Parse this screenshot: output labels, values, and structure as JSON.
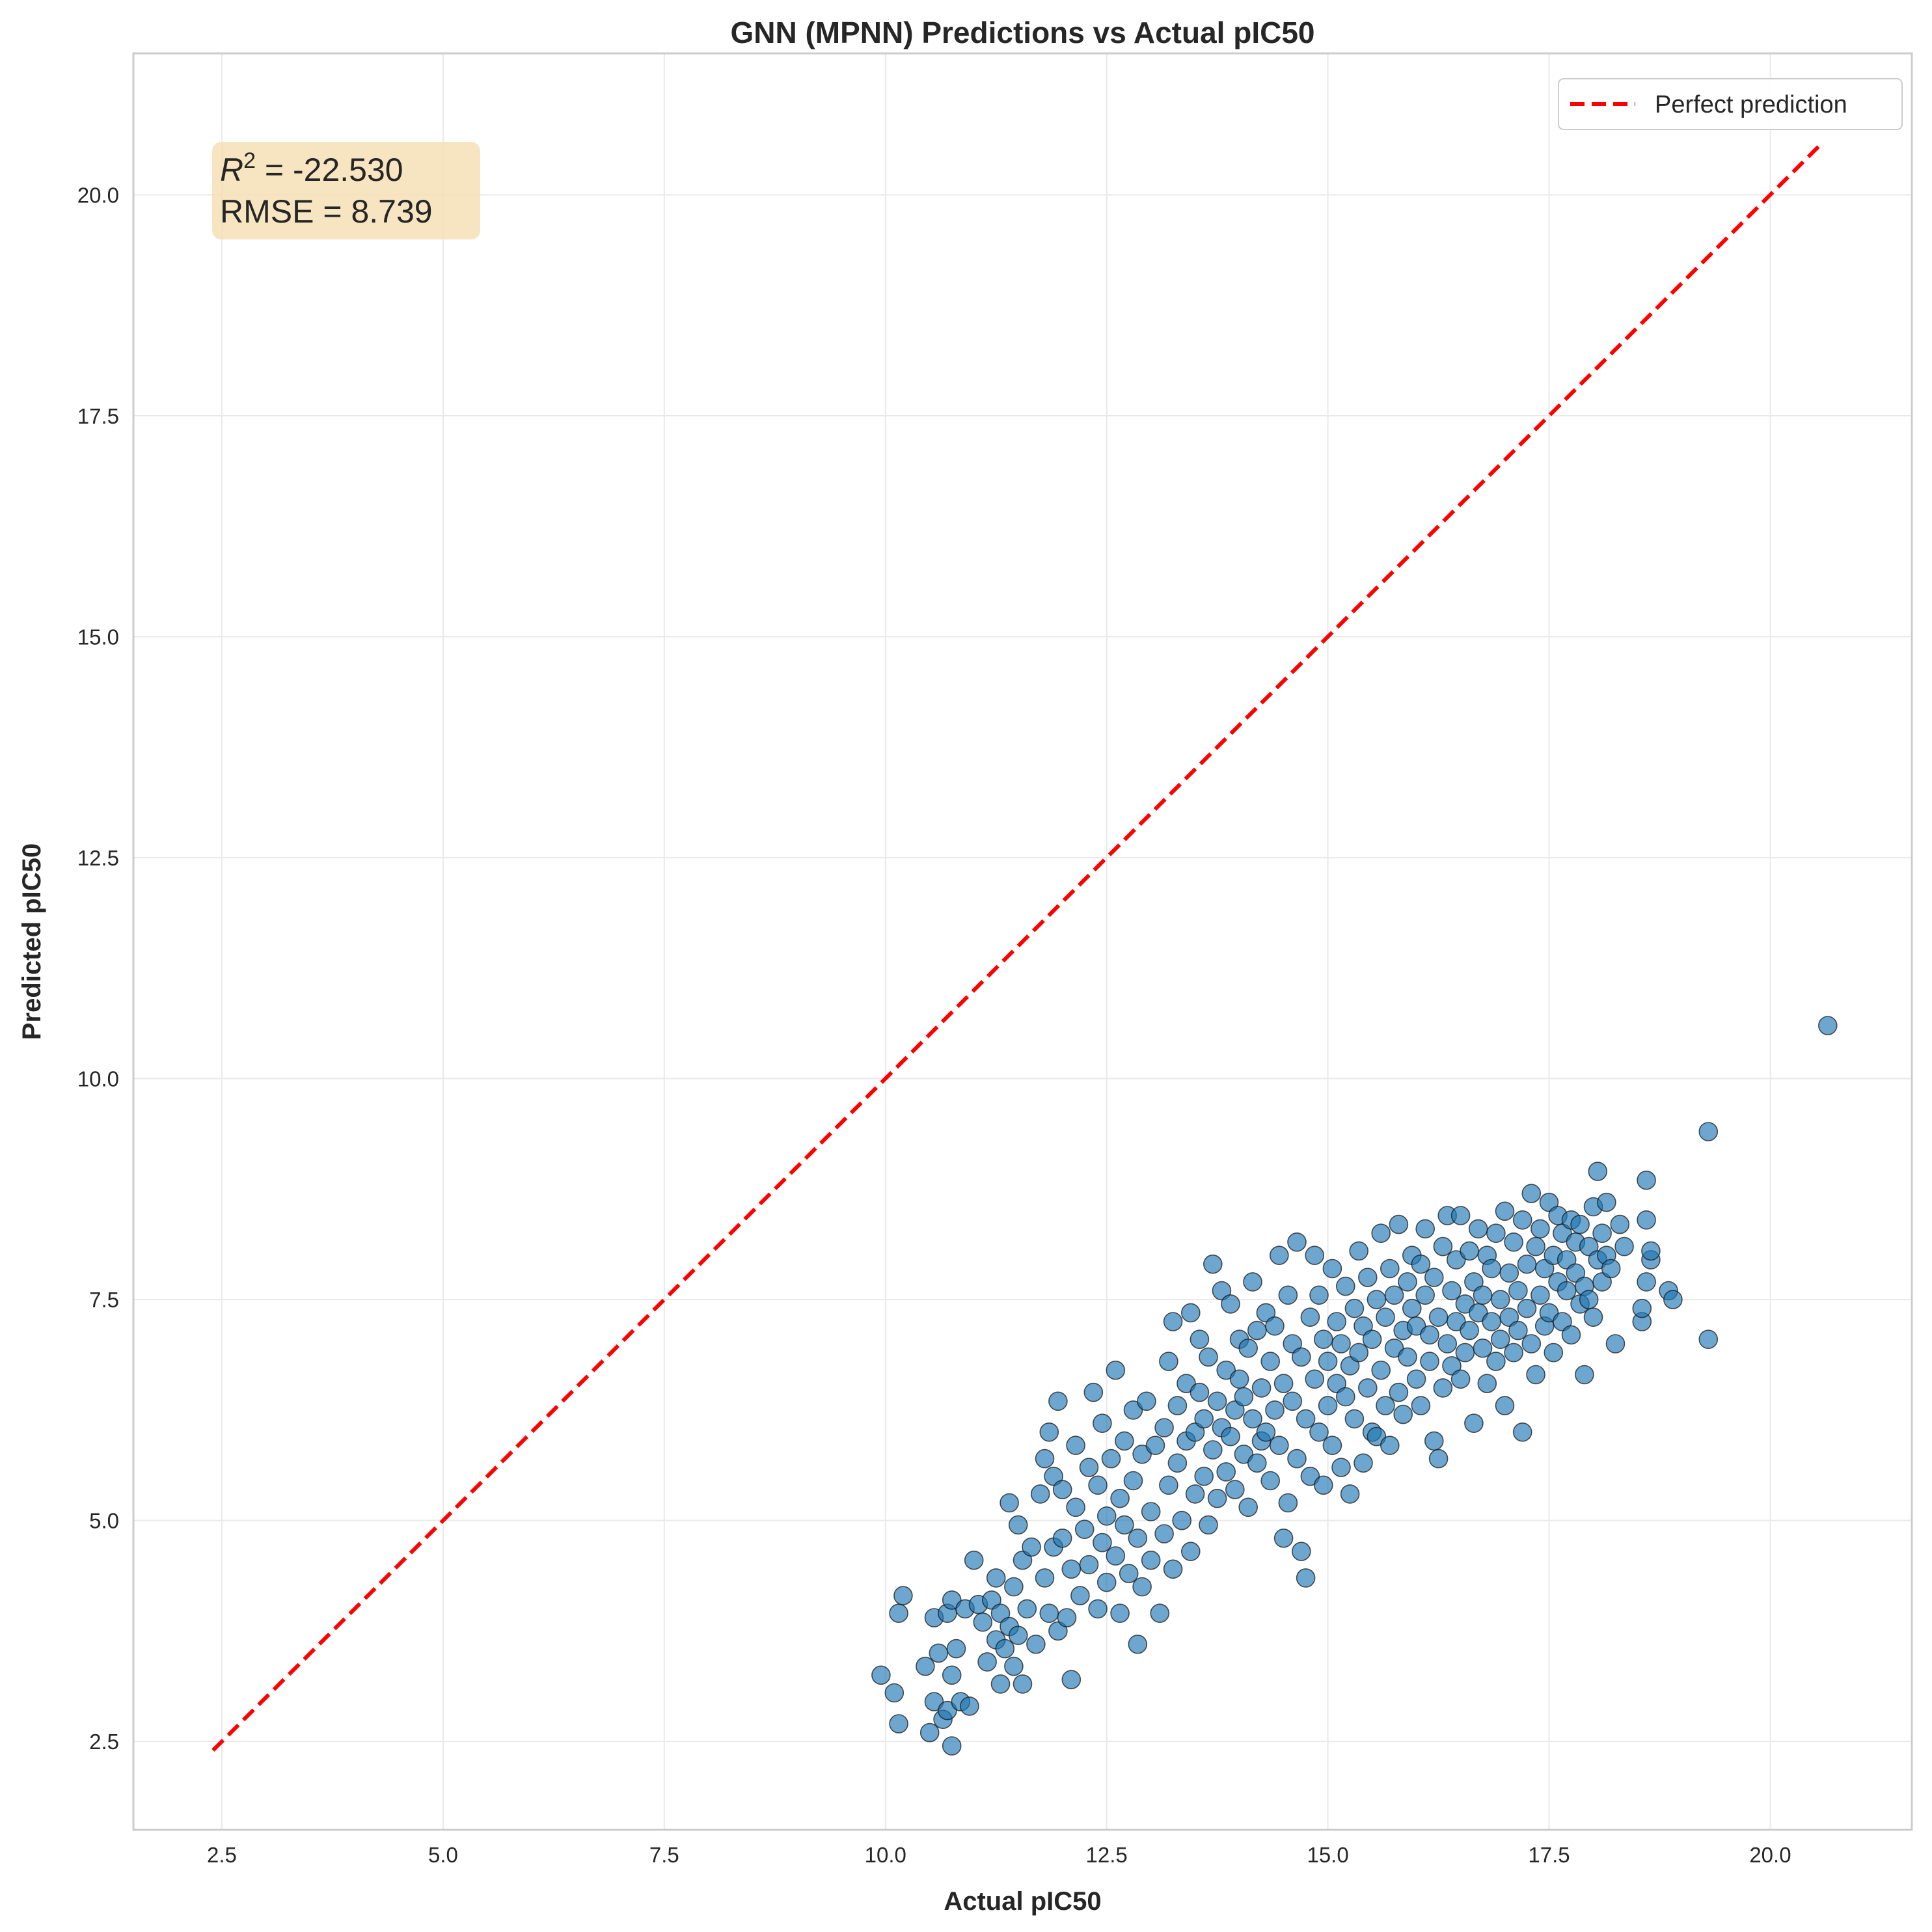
{
  "chart_data": {
    "type": "scatter",
    "title": "GNN (MPNN) Predictions vs Actual pIC50",
    "xlabel": "Actual pIC50",
    "ylabel": "Predicted pIC50",
    "xlim": [
      1.5,
      21.6
    ],
    "ylim": [
      1.5,
      21.6
    ],
    "xticks": [
      2.5,
      5.0,
      7.5,
      10.0,
      12.5,
      15.0,
      17.5,
      20.0
    ],
    "yticks": [
      2.5,
      5.0,
      7.5,
      10.0,
      12.5,
      15.0,
      17.5,
      20.0
    ],
    "xtick_labels": [
      "2.5",
      "5.0",
      "7.5",
      "10.0",
      "12.5",
      "15.0",
      "17.5",
      "20.0"
    ],
    "ytick_labels": [
      "2.5",
      "5.0",
      "7.5",
      "10.0",
      "12.5",
      "15.0",
      "17.5",
      "20.0"
    ],
    "grid": true,
    "legend": {
      "position": "top-right",
      "entries": [
        "Perfect prediction"
      ]
    },
    "reference_line": {
      "label": "Perfect prediction",
      "x": [
        2.4,
        20.6
      ],
      "y": [
        2.4,
        20.6
      ],
      "color": "#ff0000",
      "style": "dashed"
    },
    "annotation": {
      "r2_symbol": "R",
      "r2_sup": "2",
      "r2_value": " = -22.530",
      "rmse": "RMSE = 8.739"
    },
    "series": [
      {
        "color": "#1f77b4",
        "points": [
          [
            9.95,
            3.25
          ],
          [
            10.1,
            3.05
          ],
          [
            10.15,
            2.7
          ],
          [
            10.15,
            3.95
          ],
          [
            10.2,
            4.15
          ],
          [
            10.45,
            3.35
          ],
          [
            10.5,
            2.6
          ],
          [
            10.55,
            2.95
          ],
          [
            10.55,
            3.9
          ],
          [
            10.6,
            3.5
          ],
          [
            10.65,
            2.75
          ],
          [
            10.7,
            2.85
          ],
          [
            10.7,
            3.95
          ],
          [
            10.75,
            2.45
          ],
          [
            10.75,
            3.25
          ],
          [
            10.75,
            4.1
          ],
          [
            10.8,
            3.55
          ],
          [
            10.85,
            2.95
          ],
          [
            10.9,
            4.0
          ],
          [
            10.95,
            2.9
          ],
          [
            11.0,
            4.55
          ],
          [
            11.05,
            4.05
          ],
          [
            11.1,
            3.85
          ],
          [
            11.15,
            3.4
          ],
          [
            11.2,
            4.1
          ],
          [
            11.25,
            3.65
          ],
          [
            11.25,
            4.35
          ],
          [
            11.3,
            3.15
          ],
          [
            11.3,
            3.95
          ],
          [
            11.35,
            3.55
          ],
          [
            11.4,
            3.8
          ],
          [
            11.4,
            5.2
          ],
          [
            11.45,
            3.35
          ],
          [
            11.45,
            4.25
          ],
          [
            11.5,
            3.7
          ],
          [
            11.5,
            4.95
          ],
          [
            11.55,
            3.15
          ],
          [
            11.55,
            4.55
          ],
          [
            11.6,
            4.0
          ],
          [
            11.65,
            4.7
          ],
          [
            11.7,
            3.6
          ],
          [
            11.75,
            5.3
          ],
          [
            11.8,
            4.35
          ],
          [
            11.8,
            5.7
          ],
          [
            11.85,
            3.95
          ],
          [
            11.85,
            6.0
          ],
          [
            11.9,
            4.7
          ],
          [
            11.9,
            5.5
          ],
          [
            11.95,
            3.75
          ],
          [
            11.95,
            6.35
          ],
          [
            12.0,
            4.8
          ],
          [
            12.0,
            5.35
          ],
          [
            12.05,
            3.9
          ],
          [
            12.1,
            3.2
          ],
          [
            12.1,
            4.45
          ],
          [
            12.15,
            5.85
          ],
          [
            12.15,
            5.15
          ],
          [
            12.2,
            4.15
          ],
          [
            12.25,
            4.9
          ],
          [
            12.3,
            5.6
          ],
          [
            12.3,
            4.5
          ],
          [
            12.35,
            6.45
          ],
          [
            12.4,
            4.0
          ],
          [
            12.4,
            5.4
          ],
          [
            12.45,
            6.1
          ],
          [
            12.45,
            4.75
          ],
          [
            12.5,
            5.05
          ],
          [
            12.5,
            4.3
          ],
          [
            12.55,
            5.7
          ],
          [
            12.6,
            6.7
          ],
          [
            12.6,
            4.6
          ],
          [
            12.65,
            5.25
          ],
          [
            12.65,
            3.95
          ],
          [
            12.7,
            5.9
          ],
          [
            12.7,
            4.95
          ],
          [
            12.75,
            4.4
          ],
          [
            12.8,
            5.45
          ],
          [
            12.8,
            6.25
          ],
          [
            12.85,
            3.6
          ],
          [
            12.85,
            4.8
          ],
          [
            12.9,
            5.75
          ],
          [
            12.9,
            4.25
          ],
          [
            12.95,
            6.35
          ],
          [
            13.0,
            5.1
          ],
          [
            13.0,
            4.55
          ],
          [
            13.05,
            5.85
          ],
          [
            13.1,
            3.95
          ],
          [
            13.15,
            6.05
          ],
          [
            13.15,
            4.85
          ],
          [
            13.2,
            5.4
          ],
          [
            13.2,
            6.8
          ],
          [
            13.25,
            7.25
          ],
          [
            13.25,
            4.45
          ],
          [
            13.3,
            5.65
          ],
          [
            13.3,
            6.3
          ],
          [
            13.35,
            5.0
          ],
          [
            13.4,
            6.55
          ],
          [
            13.4,
            5.9
          ],
          [
            13.45,
            7.35
          ],
          [
            13.45,
            4.65
          ],
          [
            13.5,
            6.0
          ],
          [
            13.5,
            5.3
          ],
          [
            13.55,
            7.05
          ],
          [
            13.55,
            6.45
          ],
          [
            13.6,
            5.5
          ],
          [
            13.6,
            6.15
          ],
          [
            13.65,
            4.95
          ],
          [
            13.65,
            6.85
          ],
          [
            13.7,
            5.8
          ],
          [
            13.7,
            7.9
          ],
          [
            13.75,
            6.35
          ],
          [
            13.75,
            5.25
          ],
          [
            13.8,
            7.6
          ],
          [
            13.8,
            6.05
          ],
          [
            13.85,
            5.55
          ],
          [
            13.85,
            6.7
          ],
          [
            13.9,
            7.45
          ],
          [
            13.9,
            5.95
          ],
          [
            13.95,
            6.25
          ],
          [
            13.95,
            5.35
          ],
          [
            14.0,
            6.6
          ],
          [
            14.0,
            7.05
          ],
          [
            14.05,
            5.75
          ],
          [
            14.05,
            6.4
          ],
          [
            14.1,
            6.95
          ],
          [
            14.1,
            5.15
          ],
          [
            14.15,
            7.7
          ],
          [
            14.15,
            6.15
          ],
          [
            14.2,
            5.65
          ],
          [
            14.2,
            7.15
          ],
          [
            14.25,
            6.5
          ],
          [
            14.25,
            5.9
          ],
          [
            14.3,
            7.35
          ],
          [
            14.3,
            6.0
          ],
          [
            14.35,
            5.45
          ],
          [
            14.35,
            6.8
          ],
          [
            14.4,
            7.2
          ],
          [
            14.4,
            6.25
          ],
          [
            14.45,
            5.85
          ],
          [
            14.45,
            8.0
          ],
          [
            14.5,
            4.8
          ],
          [
            14.5,
            6.55
          ],
          [
            14.55,
            7.55
          ],
          [
            14.55,
            5.2
          ],
          [
            14.6,
            6.35
          ],
          [
            14.6,
            7.0
          ],
          [
            14.65,
            8.15
          ],
          [
            14.65,
            5.7
          ],
          [
            14.7,
            6.85
          ],
          [
            14.7,
            4.65
          ],
          [
            14.75,
            4.35
          ],
          [
            14.75,
            6.15
          ],
          [
            14.8,
            7.3
          ],
          [
            14.8,
            5.5
          ],
          [
            14.85,
            8.0
          ],
          [
            14.85,
            6.6
          ],
          [
            14.9,
            7.55
          ],
          [
            14.9,
            6.0
          ],
          [
            14.95,
            5.4
          ],
          [
            14.95,
            7.05
          ],
          [
            15.0,
            6.8
          ],
          [
            15.0,
            6.3
          ],
          [
            15.05,
            7.85
          ],
          [
            15.05,
            5.85
          ],
          [
            15.1,
            7.25
          ],
          [
            15.1,
            6.55
          ],
          [
            15.15,
            5.6
          ],
          [
            15.15,
            7.0
          ],
          [
            15.2,
            6.4
          ],
          [
            15.2,
            7.65
          ],
          [
            15.25,
            5.3
          ],
          [
            15.25,
            6.75
          ],
          [
            15.3,
            7.4
          ],
          [
            15.3,
            6.15
          ],
          [
            15.35,
            8.05
          ],
          [
            15.35,
            6.9
          ],
          [
            15.4,
            5.65
          ],
          [
            15.4,
            7.2
          ],
          [
            15.45,
            6.5
          ],
          [
            15.45,
            7.75
          ],
          [
            15.5,
            6.0
          ],
          [
            15.5,
            7.05
          ],
          [
            15.55,
            5.95
          ],
          [
            15.55,
            7.5
          ],
          [
            15.6,
            6.7
          ],
          [
            15.6,
            8.25
          ],
          [
            15.65,
            6.3
          ],
          [
            15.65,
            7.3
          ],
          [
            15.7,
            5.85
          ],
          [
            15.7,
            7.85
          ],
          [
            15.75,
            6.95
          ],
          [
            15.75,
            7.55
          ],
          [
            15.8,
            6.45
          ],
          [
            15.8,
            8.35
          ],
          [
            15.85,
            7.15
          ],
          [
            15.85,
            6.2
          ],
          [
            15.9,
            7.7
          ],
          [
            15.9,
            6.85
          ],
          [
            15.95,
            7.4
          ],
          [
            15.95,
            8.0
          ],
          [
            16.0,
            6.6
          ],
          [
            16.0,
            7.2
          ],
          [
            16.05,
            7.9
          ],
          [
            16.05,
            6.3
          ],
          [
            16.1,
            7.55
          ],
          [
            16.1,
            8.3
          ],
          [
            16.15,
            6.8
          ],
          [
            16.15,
            7.1
          ],
          [
            16.2,
            5.9
          ],
          [
            16.2,
            7.75
          ],
          [
            16.25,
            5.7
          ],
          [
            16.25,
            7.3
          ],
          [
            16.3,
            8.1
          ],
          [
            16.3,
            6.5
          ],
          [
            16.35,
            7.0
          ],
          [
            16.35,
            8.45
          ],
          [
            16.4,
            7.6
          ],
          [
            16.4,
            6.75
          ],
          [
            16.45,
            7.95
          ],
          [
            16.45,
            7.25
          ],
          [
            16.5,
            6.6
          ],
          [
            16.5,
            8.45
          ],
          [
            16.55,
            7.45
          ],
          [
            16.55,
            6.9
          ],
          [
            16.6,
            8.05
          ],
          [
            16.6,
            7.15
          ],
          [
            16.65,
            6.1
          ],
          [
            16.65,
            7.7
          ],
          [
            16.7,
            7.35
          ],
          [
            16.7,
            8.3
          ],
          [
            16.75,
            6.95
          ],
          [
            16.75,
            7.55
          ],
          [
            16.8,
            8.0
          ],
          [
            16.8,
            6.55
          ],
          [
            16.85,
            7.25
          ],
          [
            16.85,
            7.85
          ],
          [
            16.9,
            6.8
          ],
          [
            16.9,
            8.25
          ],
          [
            16.95,
            7.5
          ],
          [
            16.95,
            7.05
          ],
          [
            17.0,
            8.5
          ],
          [
            17.0,
            6.3
          ],
          [
            17.05,
            7.8
          ],
          [
            17.05,
            7.3
          ],
          [
            17.1,
            8.15
          ],
          [
            17.1,
            6.9
          ],
          [
            17.15,
            7.6
          ],
          [
            17.15,
            7.15
          ],
          [
            17.2,
            8.4
          ],
          [
            17.2,
            6.0
          ],
          [
            17.25,
            7.9
          ],
          [
            17.25,
            7.4
          ],
          [
            17.3,
            8.7
          ],
          [
            17.3,
            7.0
          ],
          [
            17.35,
            8.1
          ],
          [
            17.35,
            6.65
          ],
          [
            17.4,
            7.55
          ],
          [
            17.4,
            8.3
          ],
          [
            17.45,
            7.2
          ],
          [
            17.45,
            7.85
          ],
          [
            17.5,
            8.6
          ],
          [
            17.5,
            7.35
          ],
          [
            17.55,
            8.0
          ],
          [
            17.55,
            6.9
          ],
          [
            17.6,
            7.7
          ],
          [
            17.6,
            8.45
          ],
          [
            17.65,
            7.25
          ],
          [
            17.65,
            8.25
          ],
          [
            17.7,
            7.6
          ],
          [
            17.7,
            7.95
          ],
          [
            17.75,
            8.4
          ],
          [
            17.75,
            7.1
          ],
          [
            17.8,
            7.8
          ],
          [
            17.8,
            8.15
          ],
          [
            17.85,
            7.45
          ],
          [
            17.85,
            8.35
          ],
          [
            17.9,
            6.65
          ],
          [
            17.9,
            7.65
          ],
          [
            17.95,
            8.1
          ],
          [
            17.95,
            7.5
          ],
          [
            18.0,
            8.55
          ],
          [
            18.0,
            7.3
          ],
          [
            18.05,
            8.95
          ],
          [
            18.05,
            7.95
          ],
          [
            18.1,
            8.25
          ],
          [
            18.1,
            7.7
          ],
          [
            18.15,
            8.6
          ],
          [
            18.15,
            8.0
          ],
          [
            18.2,
            7.85
          ],
          [
            18.25,
            7.0
          ],
          [
            18.3,
            8.35
          ],
          [
            18.35,
            8.1
          ],
          [
            18.55,
            7.25
          ],
          [
            18.55,
            7.4
          ],
          [
            18.6,
            7.7
          ],
          [
            18.6,
            8.4
          ],
          [
            18.6,
            8.85
          ],
          [
            18.65,
            7.95
          ],
          [
            18.65,
            8.05
          ],
          [
            18.85,
            7.6
          ],
          [
            18.9,
            7.5
          ],
          [
            19.3,
            7.05
          ],
          [
            19.3,
            9.4
          ],
          [
            20.65,
            10.6
          ]
        ]
      }
    ]
  }
}
